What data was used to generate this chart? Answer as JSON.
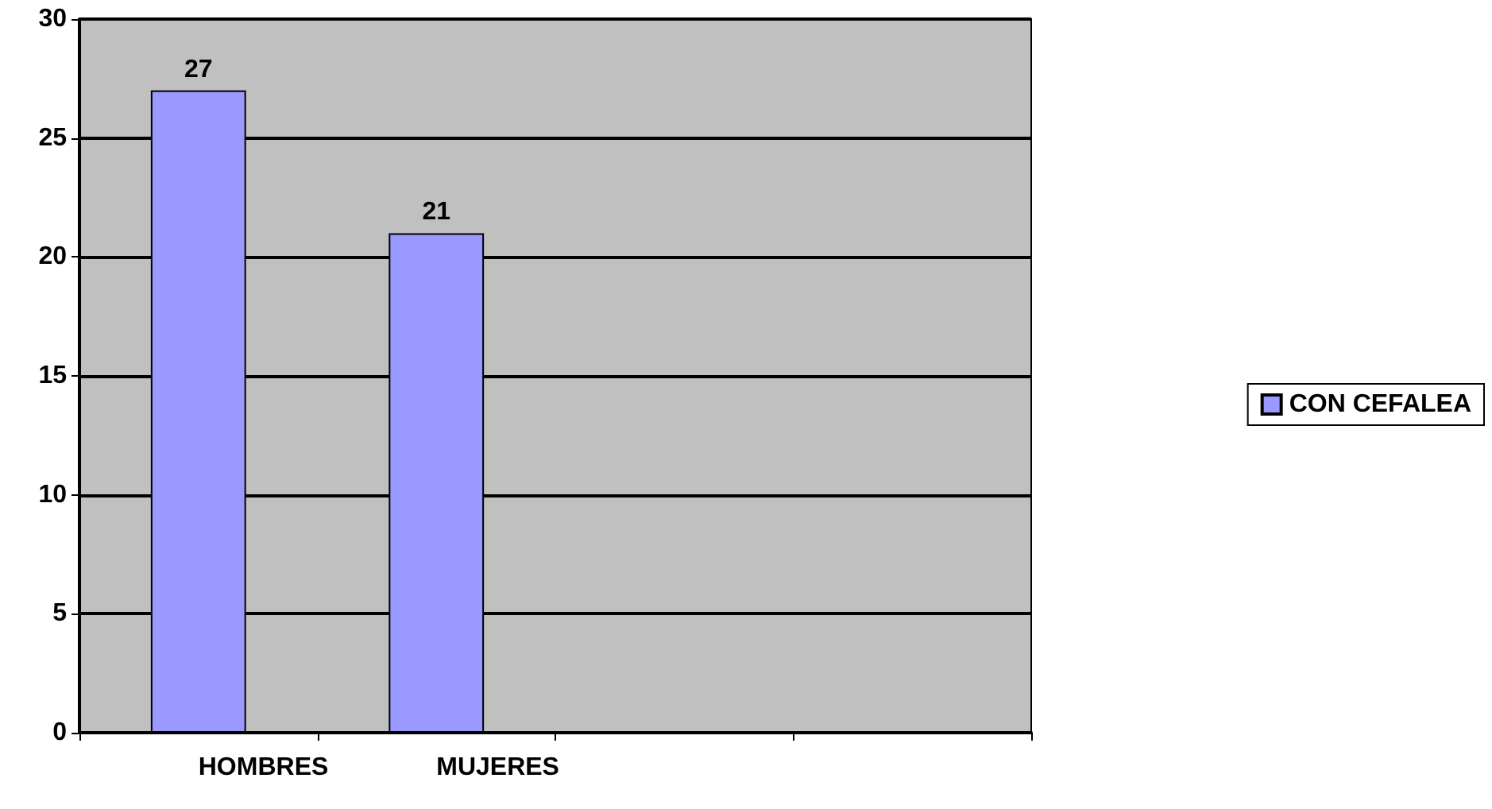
{
  "chart_data": {
    "type": "bar",
    "categories": [
      "HOMBRES",
      "MUJERES",
      null,
      null
    ],
    "series": [
      {
        "name": "CON CEFALEA",
        "color": "#9999ff",
        "values": [
          27,
          21,
          null,
          null
        ]
      }
    ],
    "ylim": [
      0,
      30
    ],
    "yticks": [
      0,
      5,
      10,
      15,
      20,
      25,
      30
    ],
    "grid": "y",
    "legend": "right",
    "data_labels": true
  }
}
